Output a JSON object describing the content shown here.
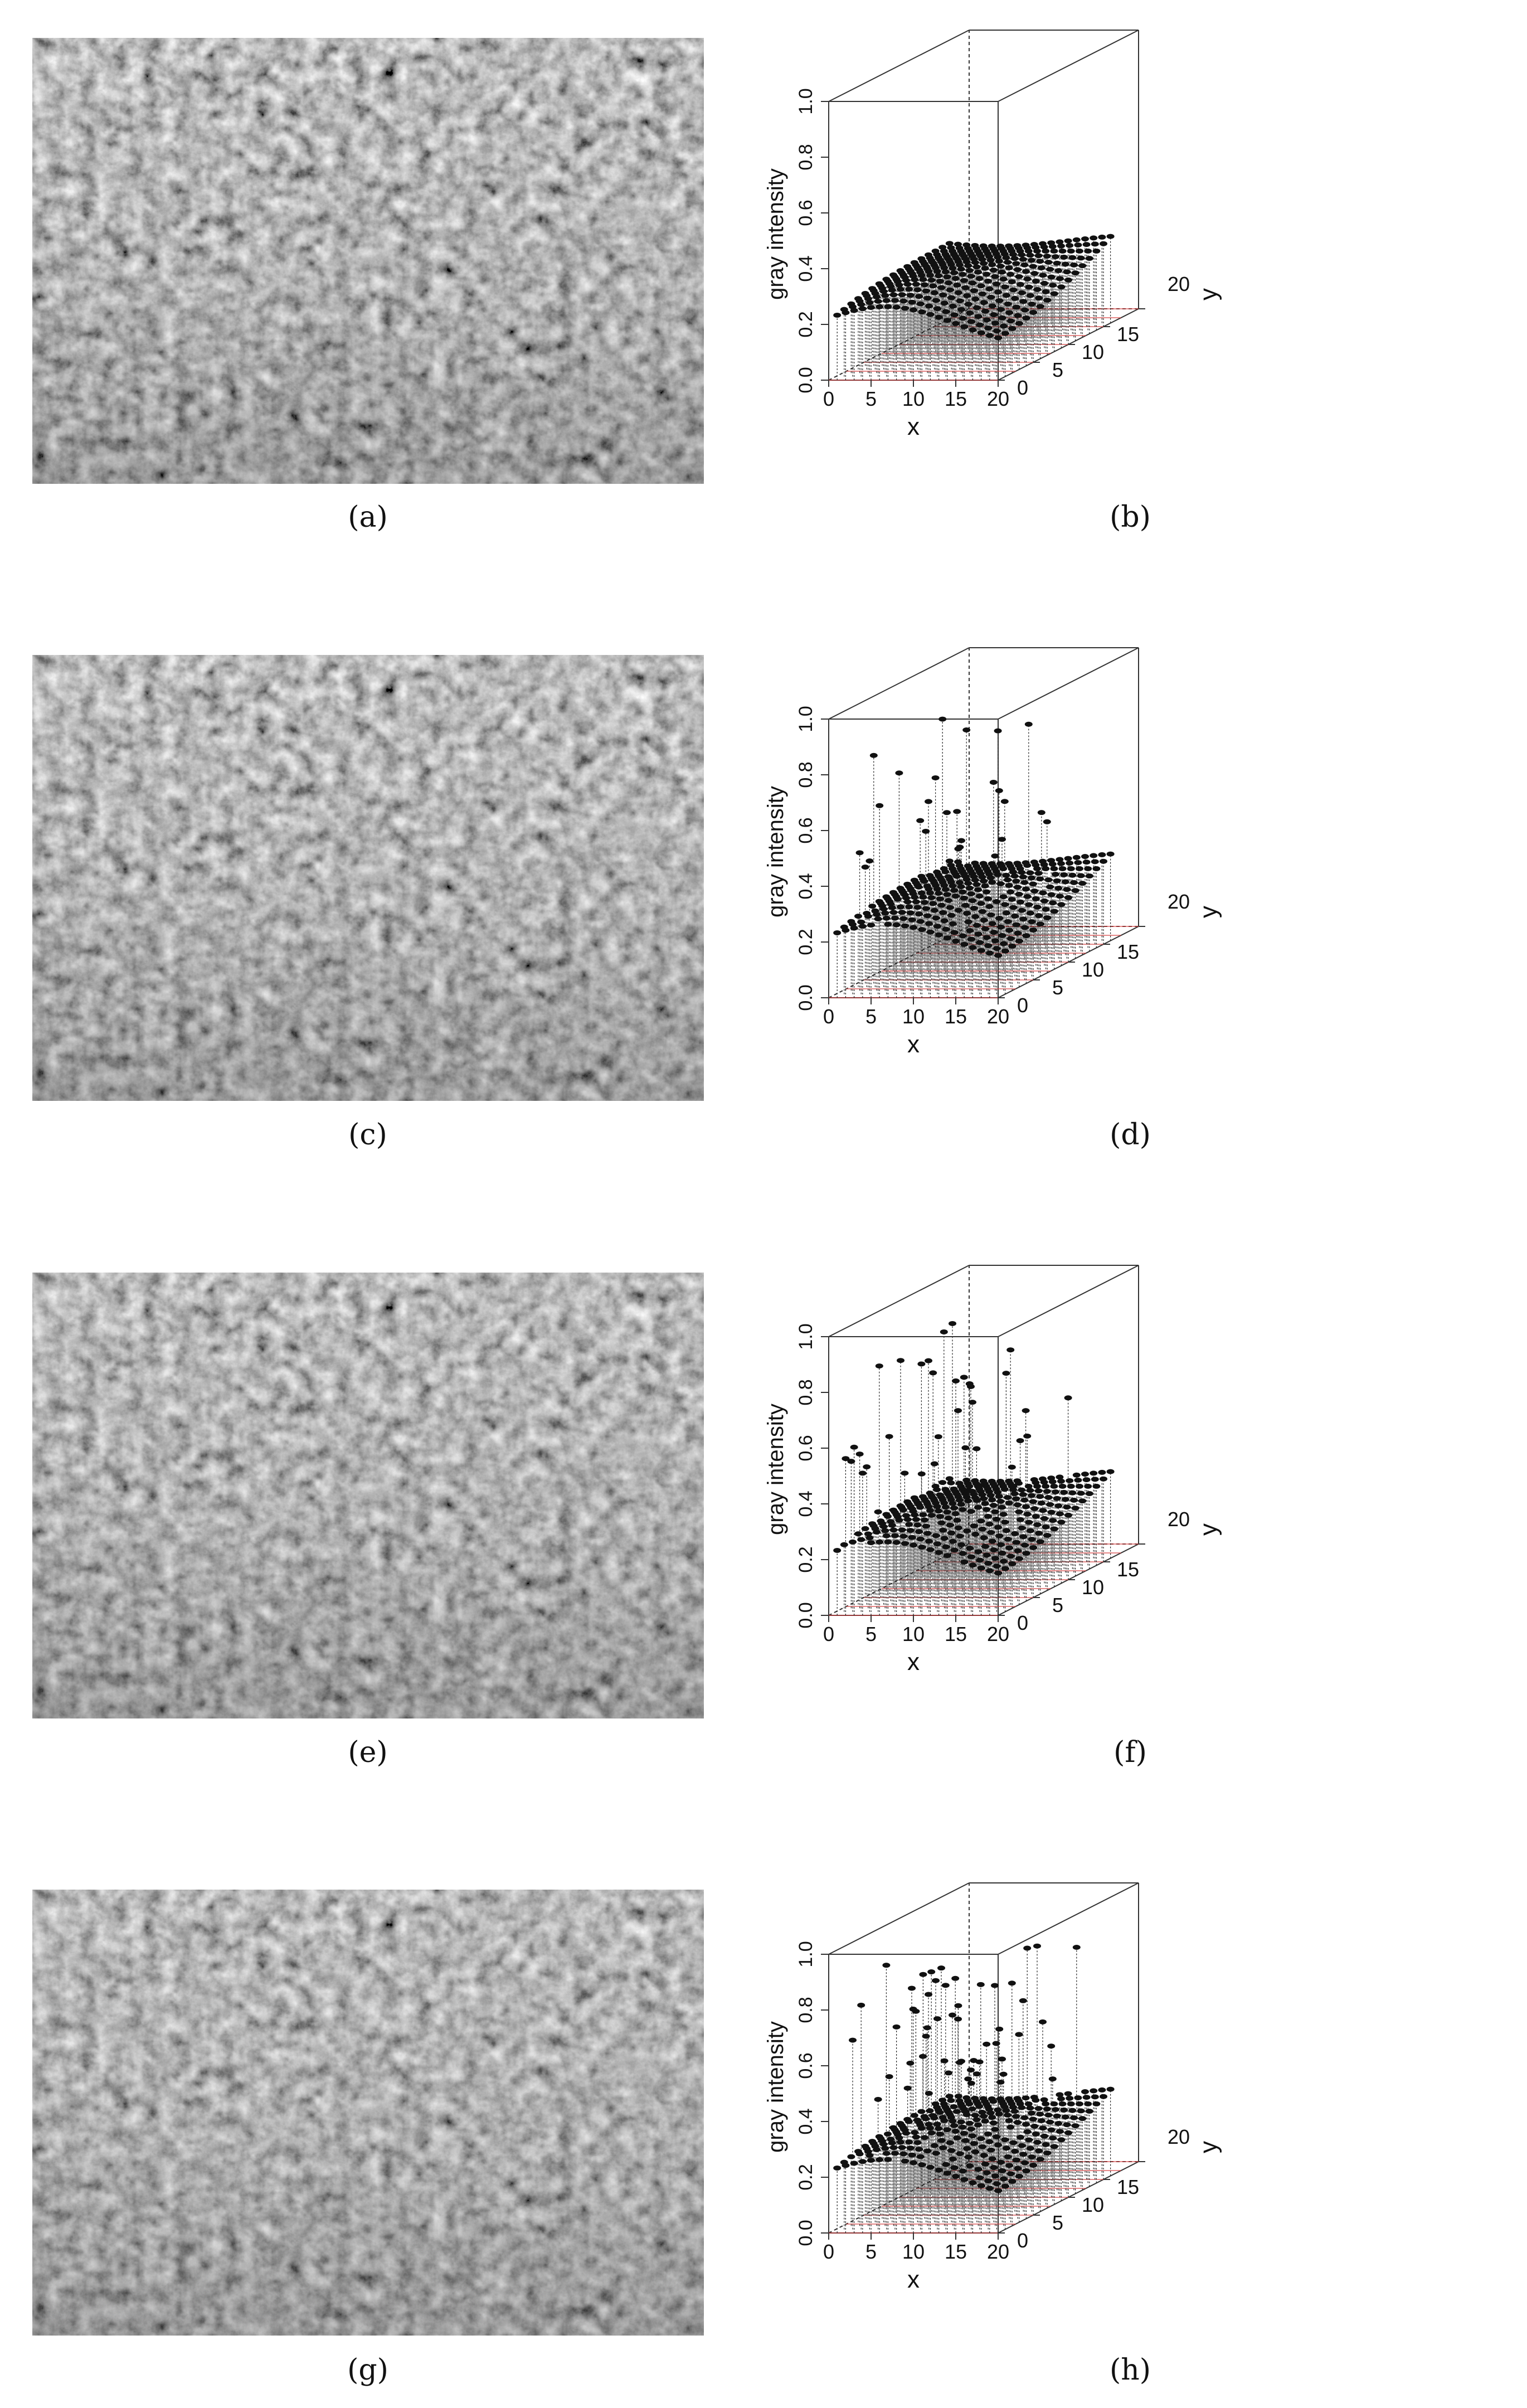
{
  "panels": [
    {
      "photo_caption": "(a)",
      "plot_caption": "(b)",
      "noise_seed": 0,
      "noise_count": 0,
      "chart_data": {
        "type": "scatter",
        "subtype": "3d-stem",
        "xlabel": "x",
        "ylabel": "y",
        "zlabel": "gray intensity",
        "x_ticks": [
          "0",
          "5",
          "10",
          "15",
          "20"
        ],
        "y_ticks": [
          "0",
          "5",
          "10",
          "15",
          "20"
        ],
        "z_ticks": [
          "0.0",
          "0.2",
          "0.4",
          "0.6",
          "0.8",
          "1.0"
        ],
        "xlim": [
          0,
          20
        ],
        "ylim": [
          0,
          20
        ],
        "zlim": [
          0,
          1
        ],
        "surface": "smooth, approximately 0.2 to 0.3 across the grid",
        "outliers": []
      }
    },
    {
      "photo_caption": "(c)",
      "plot_caption": "(d)",
      "noise_seed": 11,
      "noise_count": 26,
      "chart_data": {
        "type": "scatter",
        "subtype": "3d-stem",
        "xlabel": "x",
        "ylabel": "y",
        "zlabel": "gray intensity",
        "x_ticks": [
          "0",
          "5",
          "10",
          "15",
          "20"
        ],
        "y_ticks": [
          "0",
          "5",
          "10",
          "15",
          "20"
        ],
        "z_ticks": [
          "0.0",
          "0.2",
          "0.4",
          "0.6",
          "0.8",
          "1.0"
        ],
        "xlim": [
          0,
          20
        ],
        "ylim": [
          0,
          20
        ],
        "zlim": [
          0,
          1
        ],
        "surface": "smooth, approximately 0.2 to 0.3 across the grid",
        "outliers": "scattered impulse-noise points reaching up to about 0.9"
      }
    },
    {
      "photo_caption": "(e)",
      "plot_caption": "(f)",
      "noise_seed": 23,
      "noise_count": 40,
      "chart_data": {
        "type": "scatter",
        "subtype": "3d-stem",
        "xlabel": "x",
        "ylabel": "y",
        "zlabel": "gray intensity",
        "x_ticks": [
          "0",
          "5",
          "10",
          "15",
          "20"
        ],
        "y_ticks": [
          "0",
          "5",
          "10",
          "15",
          "20"
        ],
        "z_ticks": [
          "0.0",
          "0.2",
          "0.4",
          "0.6",
          "0.8",
          "1.0"
        ],
        "xlim": [
          0,
          20
        ],
        "ylim": [
          0,
          20
        ],
        "zlim": [
          0,
          1
        ],
        "surface": "smooth, approximately 0.2 to 0.3 across the grid",
        "outliers": "scattered impulse-noise points reaching up to about 0.8"
      }
    },
    {
      "photo_caption": "(g)",
      "plot_caption": "(h)",
      "noise_seed": 37,
      "noise_count": 60,
      "chart_data": {
        "type": "scatter",
        "subtype": "3d-stem",
        "xlabel": "x",
        "ylabel": "y",
        "zlabel": "gray intensity",
        "x_ticks": [
          "0",
          "5",
          "10",
          "15",
          "20"
        ],
        "y_ticks": [
          "0",
          "5",
          "10",
          "15",
          "20"
        ],
        "z_ticks": [
          "0.0",
          "0.2",
          "0.4",
          "0.6",
          "0.8",
          "1.0"
        ],
        "xlim": [
          0,
          20
        ],
        "ylim": [
          0,
          20
        ],
        "zlim": [
          0,
          1
        ],
        "surface": "smooth, approximately 0.2 to 0.3 across the grid",
        "outliers": "scattered impulse-noise points reaching up to about 0.85"
      }
    }
  ]
}
